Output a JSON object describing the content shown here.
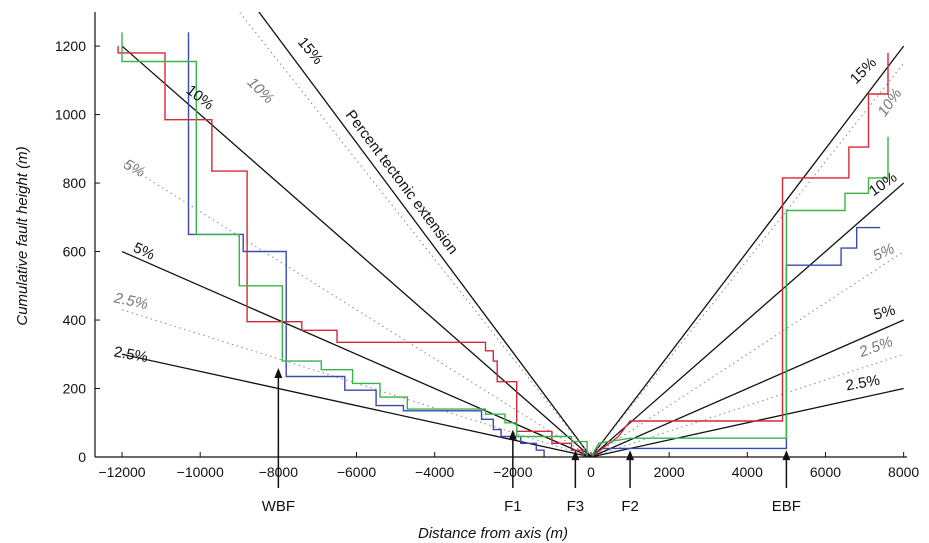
{
  "chart_data": {
    "type": "line",
    "title": "",
    "xlabel": "Distance from axis (m)",
    "ylabel": "Cumulative fault height (m)",
    "xlim": [
      -13000,
      8300
    ],
    "ylim": [
      0,
      1300
    ],
    "x_ticks": [
      -12000,
      -10000,
      -8000,
      -6000,
      -4000,
      -2000,
      0,
      2000,
      4000,
      6000,
      8000
    ],
    "x_tick_labels": [
      "−12000",
      "−10000",
      "−8000",
      "−6000",
      "−4000",
      "−2000",
      "0",
      "2000",
      "4000",
      "6000",
      "8000"
    ],
    "y_ticks": [
      0,
      200,
      400,
      600,
      800,
      1000,
      1200
    ],
    "y_tick_labels": [
      "0",
      "200",
      "400",
      "600",
      "800",
      "1000",
      "1200"
    ],
    "grid": false,
    "series": [
      {
        "color": "#3a49b0",
        "points": [
          [
            -10300,
            1240
          ],
          [
            -10300,
            650
          ],
          [
            -8900,
            650
          ],
          [
            -8900,
            600
          ],
          [
            -7800,
            600
          ],
          [
            -7800,
            235
          ],
          [
            -6300,
            235
          ],
          [
            -6300,
            195
          ],
          [
            -5500,
            195
          ],
          [
            -5500,
            150
          ],
          [
            -4800,
            150
          ],
          [
            -4800,
            135
          ],
          [
            -2800,
            135
          ],
          [
            -2800,
            110
          ],
          [
            -2500,
            110
          ],
          [
            -2500,
            80
          ],
          [
            -2300,
            80
          ],
          [
            -2300,
            60
          ],
          [
            -1800,
            60
          ],
          [
            -1800,
            40
          ],
          [
            -1400,
            40
          ],
          [
            -1400,
            20
          ],
          [
            -1200,
            20
          ],
          [
            -1200,
            0
          ]
        ]
      },
      {
        "color": "#d62839",
        "points": [
          [
            -12100,
            1200
          ],
          [
            -12100,
            1180
          ],
          [
            -10900,
            1180
          ],
          [
            -10900,
            985
          ],
          [
            -9700,
            985
          ],
          [
            -9700,
            835
          ],
          [
            -8800,
            835
          ],
          [
            -8800,
            395
          ],
          [
            -7400,
            395
          ],
          [
            -7400,
            370
          ],
          [
            -6500,
            370
          ],
          [
            -6500,
            335
          ],
          [
            -2700,
            335
          ],
          [
            -2700,
            310
          ],
          [
            -2500,
            310
          ],
          [
            -2500,
            280
          ],
          [
            -2400,
            280
          ],
          [
            -2400,
            220
          ],
          [
            -1900,
            220
          ],
          [
            -1900,
            75
          ],
          [
            -1000,
            75
          ],
          [
            -1000,
            40
          ],
          [
            -500,
            40
          ],
          [
            -500,
            20
          ],
          [
            -200,
            20
          ],
          [
            -200,
            0
          ]
        ]
      },
      {
        "color": "#39b54a",
        "points": [
          [
            -12000,
            1240
          ],
          [
            -12000,
            1155
          ],
          [
            -10100,
            1155
          ],
          [
            -10100,
            650
          ],
          [
            -9000,
            650
          ],
          [
            -9000,
            500
          ],
          [
            -7900,
            500
          ],
          [
            -7900,
            280
          ],
          [
            -6900,
            280
          ],
          [
            -6900,
            255
          ],
          [
            -6100,
            255
          ],
          [
            -6100,
            215
          ],
          [
            -5400,
            215
          ],
          [
            -5400,
            175
          ],
          [
            -4700,
            175
          ],
          [
            -4700,
            140
          ],
          [
            -2700,
            140
          ],
          [
            -2700,
            125
          ],
          [
            -2200,
            125
          ],
          [
            -2200,
            100
          ],
          [
            -1900,
            100
          ],
          [
            -1900,
            60
          ],
          [
            -500,
            60
          ],
          [
            -500,
            45
          ],
          [
            -100,
            45
          ],
          [
            -100,
            0
          ]
        ]
      },
      {
        "color": "#3a49b0",
        "points": [
          [
            0,
            0
          ],
          [
            300,
            25
          ],
          [
            5000,
            25
          ],
          [
            5000,
            560
          ],
          [
            6400,
            560
          ],
          [
            6400,
            610
          ],
          [
            6800,
            610
          ],
          [
            6800,
            670
          ],
          [
            7400,
            670
          ]
        ]
      },
      {
        "color": "#d62839",
        "points": [
          [
            0,
            0
          ],
          [
            700,
            60
          ],
          [
            1000,
            105
          ],
          [
            4900,
            105
          ],
          [
            4900,
            815
          ],
          [
            6600,
            815
          ],
          [
            6600,
            905
          ],
          [
            7100,
            905
          ],
          [
            7100,
            1060
          ],
          [
            7600,
            1060
          ],
          [
            7600,
            1180
          ]
        ]
      },
      {
        "color": "#39b54a",
        "points": [
          [
            0,
            0
          ],
          [
            200,
            40
          ],
          [
            1000,
            55
          ],
          [
            5000,
            55
          ],
          [
            5000,
            720
          ],
          [
            6500,
            720
          ],
          [
            6500,
            770
          ],
          [
            7100,
            770
          ],
          [
            7100,
            815
          ],
          [
            7600,
            815
          ],
          [
            7600,
            935
          ]
        ]
      }
    ],
    "reference_lines": [
      {
        "label": "15%",
        "style": "solid",
        "x_end": -8500,
        "y_end": 1300
      },
      {
        "label": "10%",
        "style": "dotted",
        "x_end": -9000,
        "y_end": 1300
      },
      {
        "label": "10%",
        "style": "solid",
        "x_end": -12000,
        "y_end": 1200
      },
      {
        "label": "5%",
        "style": "dotted",
        "x_end": -12000,
        "y_end": 860
      },
      {
        "label": "5%",
        "style": "solid",
        "x_end": -12000,
        "y_end": 600
      },
      {
        "label": "2.5%",
        "style": "dotted",
        "x_end": -12000,
        "y_end": 430
      },
      {
        "label": "2.5%",
        "style": "solid",
        "x_end": -12000,
        "y_end": 300
      },
      {
        "label": "15%",
        "style": "solid",
        "x_end": 8000,
        "y_end": 1200
      },
      {
        "label": "10%",
        "style": "dotted",
        "x_end": 8000,
        "y_end": 1150
      },
      {
        "label": "10%",
        "style": "solid",
        "x_end": 8000,
        "y_end": 800
      },
      {
        "label": "5%",
        "style": "dotted",
        "x_end": 8000,
        "y_end": 600
      },
      {
        "label": "5%",
        "style": "solid",
        "x_end": 8000,
        "y_end": 400
      },
      {
        "label": "2.5%",
        "style": "dotted",
        "x_end": 8000,
        "y_end": 300
      },
      {
        "label": "2.5%",
        "style": "solid",
        "x_end": 8000,
        "y_end": 200
      }
    ],
    "annotations": [
      {
        "text": "Percent tectonic extension"
      },
      {
        "text": "WBF",
        "x": -8000,
        "y_tip": 260
      },
      {
        "text": "F1",
        "x": -2000,
        "y_tip": 80
      },
      {
        "text": "F3",
        "x": -400,
        "y_tip": 20
      },
      {
        "text": "F2",
        "x": 1000,
        "y_tip": 20
      },
      {
        "text": "EBF",
        "x": 5000,
        "y_tip": 20
      }
    ],
    "colors": {
      "solid_ref": "#111111",
      "dotted_ref": "#888888"
    }
  }
}
